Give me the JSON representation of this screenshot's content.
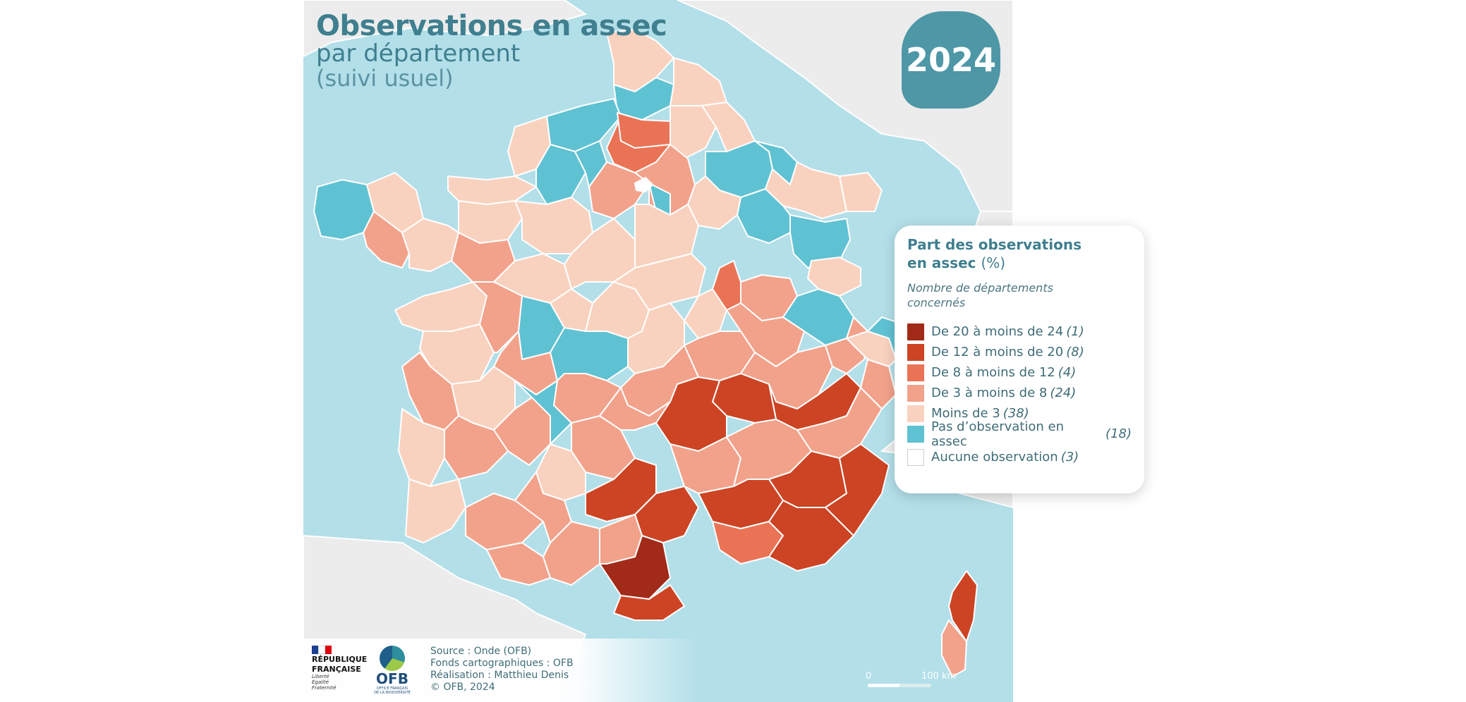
{
  "title": {
    "main": "Observations en assec",
    "sub": "par département",
    "sub2": "(suivi usuel)"
  },
  "year": "2024",
  "legend": {
    "title_line1": "Part des observations",
    "title_line2": "en assec",
    "title_unit": "(%)",
    "subtitle_line1": "Nombre de départements",
    "subtitle_line2": "concernés",
    "items": [
      {
        "label": "De 20 à moins de 24",
        "count": "(1)",
        "color": "#a12a18"
      },
      {
        "label": "De 12 à moins de 20",
        "count": "(8)",
        "color": "#cc4424"
      },
      {
        "label": "De 8 à moins de 12",
        "count": "(4)",
        "color": "#ea7355"
      },
      {
        "label": "De 3 à moins de 8",
        "count": "(24)",
        "color": "#f2a28b"
      },
      {
        "label": "Moins de 3",
        "count": "(38)",
        "color": "#f9d2bf"
      },
      {
        "label": "Pas d’observation en assec",
        "count": "(18)",
        "color": "#5fc2d2"
      },
      {
        "label": "Aucune observation",
        "count": "(3)",
        "color": "#ffffff"
      }
    ]
  },
  "footer": {
    "republique_line1": "RÉPUBLIQUE",
    "republique_line2": "FRANÇAISE",
    "motto1": "Liberté",
    "motto2": "Égalité",
    "motto3": "Fraternité",
    "ofb_name": "OFB",
    "ofb_full": "OFFICE FRANÇAIS DE LA BIODIVERSITÉ",
    "source": "Source : Onde (OFB)",
    "fonds": "Fonds cartographiques : OFB",
    "realisation": "Réalisation : Matthieu Denis",
    "copyright": "© OFB, 2024"
  },
  "scale": {
    "start": "0",
    "end": "100 km"
  },
  "colors": {
    "sea": "#b3dfe9",
    "foreign_land": "#ececec",
    "border": "#ffffff",
    "title": "#3f7f8f"
  }
}
